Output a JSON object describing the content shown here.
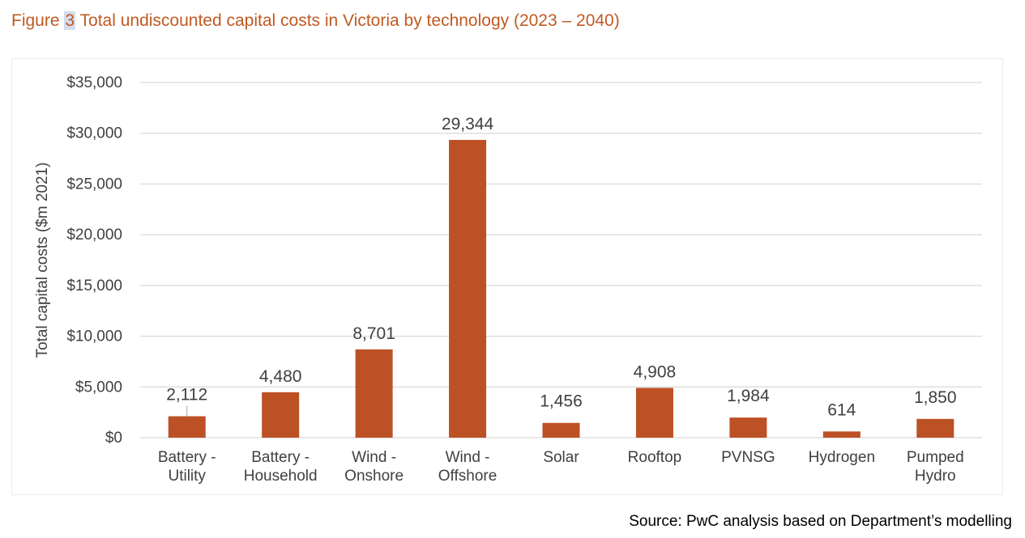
{
  "figure": {
    "label_prefix": "Figure",
    "number": "3",
    "title_text": "Total undiscounted capital costs in Victoria by technology (2023 – 2040)"
  },
  "source_note": "Source: PwC analysis based on Department’s modelling",
  "colors": {
    "title": "#c05a22",
    "bar": "#bc5125",
    "grid": "#d9d9d9",
    "axis_text": "#404040"
  },
  "chart_data": {
    "type": "bar",
    "categories": [
      [
        "Battery -",
        "Utility"
      ],
      [
        "Battery -",
        "Household"
      ],
      [
        "Wind -",
        "Onshore"
      ],
      [
        "Wind -",
        "Offshore"
      ],
      [
        "Solar"
      ],
      [
        "Rooftop"
      ],
      [
        "PVNSG"
      ],
      [
        "Hydrogen"
      ],
      [
        "Pumped",
        "Hydro"
      ]
    ],
    "values": [
      2112,
      4480,
      8701,
      29344,
      1456,
      4908,
      1984,
      614,
      1850
    ],
    "data_labels": [
      "2,112",
      "4,480",
      "8,701",
      "29,344",
      "1,456",
      "4,908",
      "1,984",
      "614",
      "1,850"
    ],
    "ylabel": "Total capital costs ($m 2021)",
    "xlabel": "",
    "ylim": [
      0,
      35000
    ],
    "yticks": [
      0,
      5000,
      10000,
      15000,
      20000,
      25000,
      30000,
      35000
    ],
    "ytick_labels": [
      "$0",
      "$5,000",
      "$10,000",
      "$15,000",
      "$20,000",
      "$25,000",
      "$30,000",
      "$35,000"
    ],
    "grid": true,
    "legend": "none"
  }
}
